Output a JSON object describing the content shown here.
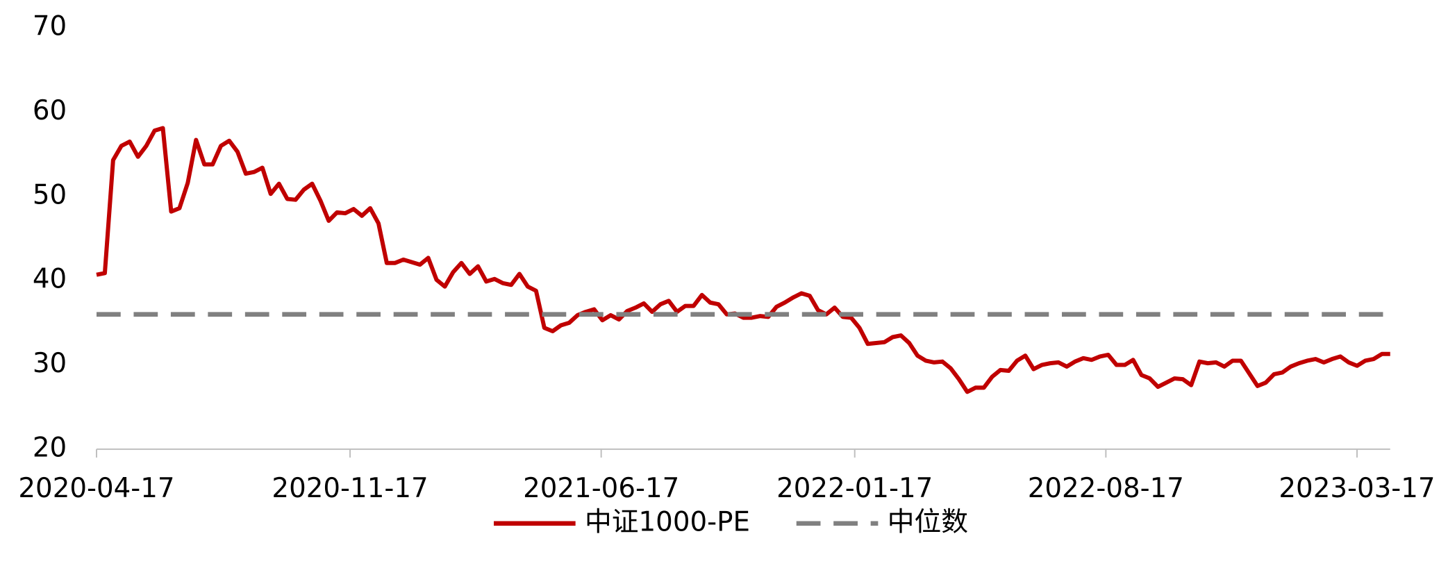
{
  "chart_data": {
    "type": "line",
    "x": [
      "2020-04-17",
      "2020-04-24",
      "2020-05-01",
      "2020-05-08",
      "2020-05-15",
      "2020-05-22",
      "2020-05-29",
      "2020-06-05",
      "2020-06-12",
      "2020-06-19",
      "2020-06-26",
      "2020-07-03",
      "2020-07-10",
      "2020-07-17",
      "2020-07-24",
      "2020-07-31",
      "2020-08-07",
      "2020-08-14",
      "2020-08-21",
      "2020-08-28",
      "2020-09-04",
      "2020-09-11",
      "2020-09-18",
      "2020-09-25",
      "2020-10-02",
      "2020-10-09",
      "2020-10-16",
      "2020-10-23",
      "2020-10-30",
      "2020-11-06",
      "2020-11-13",
      "2020-11-20",
      "2020-11-27",
      "2020-12-04",
      "2020-12-11",
      "2020-12-18",
      "2020-12-25",
      "2021-01-01",
      "2021-01-08",
      "2021-01-15",
      "2021-01-22",
      "2021-01-29",
      "2021-02-05",
      "2021-02-12",
      "2021-02-19",
      "2021-02-26",
      "2021-03-05",
      "2021-03-12",
      "2021-03-19",
      "2021-03-26",
      "2021-04-02",
      "2021-04-09",
      "2021-04-16",
      "2021-04-23",
      "2021-04-30",
      "2021-05-07",
      "2021-05-14",
      "2021-05-21",
      "2021-05-28",
      "2021-06-04",
      "2021-06-11",
      "2021-06-18",
      "2021-06-25",
      "2021-07-02",
      "2021-07-09",
      "2021-07-16",
      "2021-07-23",
      "2021-07-30",
      "2021-08-06",
      "2021-08-13",
      "2021-08-20",
      "2021-08-27",
      "2021-09-03",
      "2021-09-10",
      "2021-09-17",
      "2021-09-24",
      "2021-10-01",
      "2021-10-08",
      "2021-10-15",
      "2021-10-22",
      "2021-10-29",
      "2021-11-05",
      "2021-11-12",
      "2021-11-19",
      "2021-11-26",
      "2021-12-03",
      "2021-12-10",
      "2021-12-17",
      "2021-12-24",
      "2021-12-31",
      "2022-01-07",
      "2022-01-14",
      "2022-01-21",
      "2022-01-28",
      "2022-02-04",
      "2022-02-11",
      "2022-02-18",
      "2022-02-25",
      "2022-03-04",
      "2022-03-11",
      "2022-03-18",
      "2022-03-25",
      "2022-04-01",
      "2022-04-08",
      "2022-04-15",
      "2022-04-22",
      "2022-04-29",
      "2022-05-06",
      "2022-05-13",
      "2022-05-20",
      "2022-05-27",
      "2022-06-03",
      "2022-06-10",
      "2022-06-17",
      "2022-06-24",
      "2022-07-01",
      "2022-07-08",
      "2022-07-15",
      "2022-07-22",
      "2022-07-29",
      "2022-08-05",
      "2022-08-12",
      "2022-08-19",
      "2022-08-26",
      "2022-09-02",
      "2022-09-09",
      "2022-09-16",
      "2022-09-23",
      "2022-09-30",
      "2022-10-07",
      "2022-10-14",
      "2022-10-21",
      "2022-10-28",
      "2022-11-04",
      "2022-11-11",
      "2022-11-18",
      "2022-11-25",
      "2022-12-02",
      "2022-12-09",
      "2022-12-16",
      "2022-12-23",
      "2022-12-30",
      "2023-01-06",
      "2023-01-13",
      "2023-01-20",
      "2023-01-27",
      "2023-02-03",
      "2023-02-10",
      "2023-02-17",
      "2023-02-24",
      "2023-03-03",
      "2023-03-10",
      "2023-03-17",
      "2023-03-24",
      "2023-03-31",
      "2023-04-07",
      "2023-04-14"
    ],
    "series": [
      {
        "name": "中证1000-PE",
        "color": "#c00000",
        "values": [
          40.7,
          40.9,
          54.3,
          56,
          56.5,
          54.7,
          56,
          57.8,
          58.1,
          48.2,
          48.6,
          51.6,
          56.7,
          53.8,
          53.8,
          56,
          56.6,
          55.3,
          52.7,
          52.9,
          53.4,
          50.3,
          51.5,
          49.7,
          49.6,
          50.8,
          51.5,
          49.5,
          47.1,
          48.1,
          48,
          48.5,
          47.7,
          48.6,
          46.8,
          42.1,
          42.1,
          42.5,
          42.2,
          41.9,
          42.7,
          40.1,
          39.3,
          41,
          42.1,
          40.8,
          41.7,
          39.9,
          40.2,
          39.7,
          39.5,
          40.8,
          39.3,
          38.8,
          34.4,
          34,
          34.7,
          35,
          35.9,
          36.3,
          36.6,
          35.3,
          35.9,
          35.4,
          36.4,
          36.8,
          37.3,
          36.3,
          37.2,
          37.6,
          36.3,
          37,
          37,
          38.3,
          37.4,
          37.2,
          36,
          36.1,
          35.6,
          35.6,
          35.8,
          35.7,
          36.9,
          37.4,
          38,
          38.5,
          38.2,
          36.5,
          36,
          36.8,
          35.7,
          35.6,
          34.4,
          32.5,
          32.6,
          32.7,
          33.3,
          33.5,
          32.6,
          31.1,
          30.5,
          30.3,
          30.4,
          29.6,
          28.3,
          26.8,
          27.3,
          27.3,
          28.6,
          29.4,
          29.3,
          30.5,
          31.1,
          29.5,
          30,
          30.2,
          30.3,
          29.8,
          30.4,
          30.8,
          30.6,
          31,
          31.2,
          30,
          30,
          30.6,
          28.8,
          28.4,
          27.4,
          27.9,
          28.4,
          28.3,
          27.6,
          30.4,
          30.2,
          30.3,
          29.8,
          30.5,
          30.5,
          29,
          27.5,
          27.9,
          28.9,
          29.1,
          29.8,
          30.2,
          30.5,
          30.7,
          30.3,
          30.7,
          31,
          30.3,
          29.9,
          30.5,
          30.7,
          31.3,
          31.3
        ]
      },
      {
        "name": "中位数",
        "color": "#808080",
        "dashed": true,
        "value": 36
      }
    ],
    "xlim": [
      "2020-04-17",
      "2023-04-14"
    ],
    "xticks": [
      "2020-04-17",
      "2020-11-17",
      "2021-06-17",
      "2022-01-17",
      "2022-08-17",
      "2023-03-17"
    ],
    "ylim": [
      20,
      70
    ],
    "yticks": [
      20,
      30,
      40,
      50,
      60,
      70
    ],
    "grid": false,
    "legend": "bottom"
  }
}
